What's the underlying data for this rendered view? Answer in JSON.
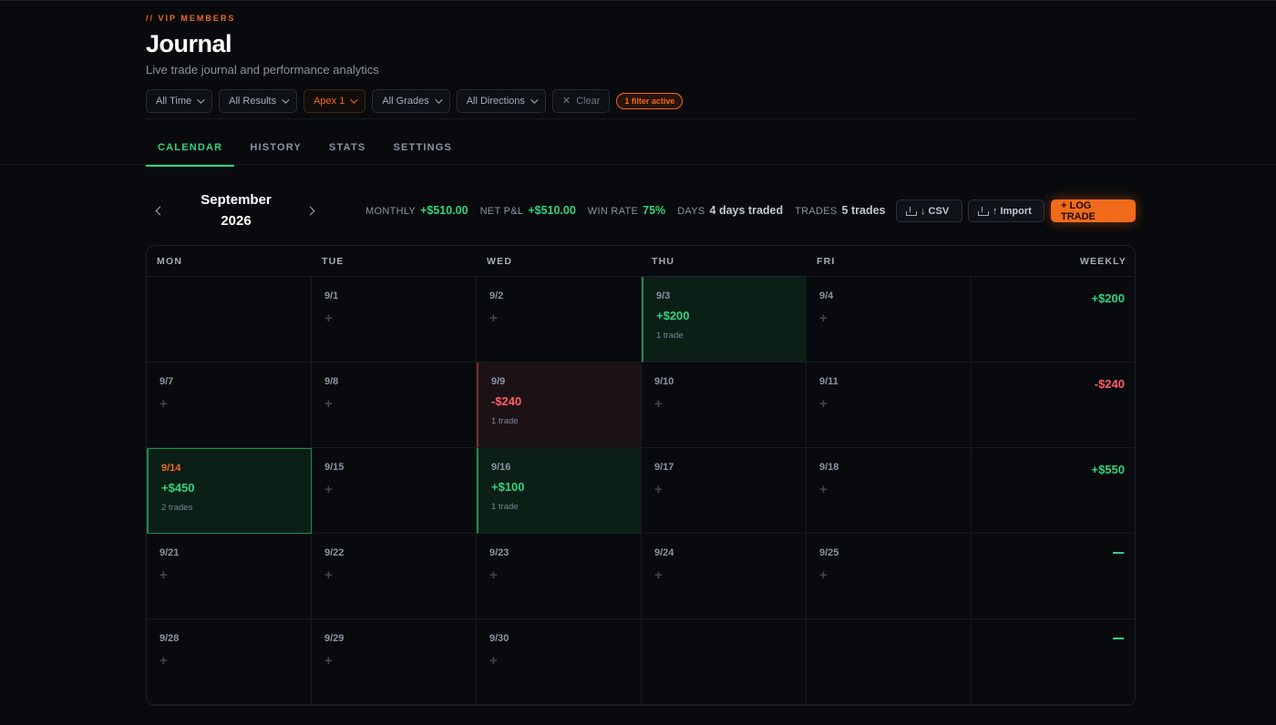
{
  "header": {
    "eyebrow": "// VIP MEMBERS",
    "title": "Journal",
    "subtitle": "Live trade journal and performance analytics"
  },
  "filters": {
    "time": "All Time",
    "results": "All Results",
    "account": "Apex 1",
    "grades": "All Grades",
    "directions": "All Directions",
    "clear": "Clear",
    "badge": "1 filter active"
  },
  "tabs": [
    "CALENDAR",
    "HISTORY",
    "STATS",
    "SETTINGS"
  ],
  "month": {
    "name": "September",
    "year": "2026"
  },
  "stats": {
    "monthly_label": "MONTHLY",
    "monthly_value": "+$510.00",
    "net_label": "NET P&L",
    "net_value": "+$510.00",
    "winrate_label": "WIN RATE",
    "winrate_value": "75%",
    "days_label": "DAYS",
    "days_value": "4 days traded",
    "trades_label": "TRADES",
    "trades_value": "5 trades"
  },
  "actions": {
    "csv": "↓ CSV",
    "import": "↑ Import",
    "log": "+ LOG TRADE"
  },
  "calendar": {
    "headers": [
      "MON",
      "TUE",
      "WED",
      "THU",
      "FRI",
      "WEEKLY"
    ],
    "weeks": [
      {
        "days": [
          null,
          {
            "date": "9/1"
          },
          {
            "date": "9/2"
          },
          {
            "date": "9/3",
            "pnl": "+$200",
            "trades": "1 trade",
            "result": "win"
          },
          {
            "date": "9/4"
          }
        ],
        "weekly": "+$200",
        "weekly_result": "win"
      },
      {
        "days": [
          {
            "date": "9/7"
          },
          {
            "date": "9/8"
          },
          {
            "date": "9/9",
            "pnl": "-$240",
            "trades": "1 trade",
            "result": "loss"
          },
          {
            "date": "9/10"
          },
          {
            "date": "9/11"
          }
        ],
        "weekly": "-$240",
        "weekly_result": "loss"
      },
      {
        "days": [
          {
            "date": "9/14",
            "pnl": "+$450",
            "trades": "2 trades",
            "result": "win",
            "today": true
          },
          {
            "date": "9/15"
          },
          {
            "date": "9/16",
            "pnl": "+$100",
            "trades": "1 trade",
            "result": "win"
          },
          {
            "date": "9/17"
          },
          {
            "date": "9/18"
          }
        ],
        "weekly": "+$550",
        "weekly_result": "win"
      },
      {
        "days": [
          {
            "date": "9/21"
          },
          {
            "date": "9/22"
          },
          {
            "date": "9/23"
          },
          {
            "date": "9/24"
          },
          {
            "date": "9/25"
          }
        ],
        "weekly": "—",
        "weekly_result": "none"
      },
      {
        "days": [
          {
            "date": "9/28"
          },
          {
            "date": "9/29"
          },
          {
            "date": "9/30"
          },
          null,
          null
        ],
        "weekly": "—",
        "weekly_result": "none"
      }
    ]
  },
  "colors": {
    "accent": "#f26a1b",
    "positive": "#2fd47e",
    "negative": "#ff5f6b",
    "background": "#080a0d"
  }
}
